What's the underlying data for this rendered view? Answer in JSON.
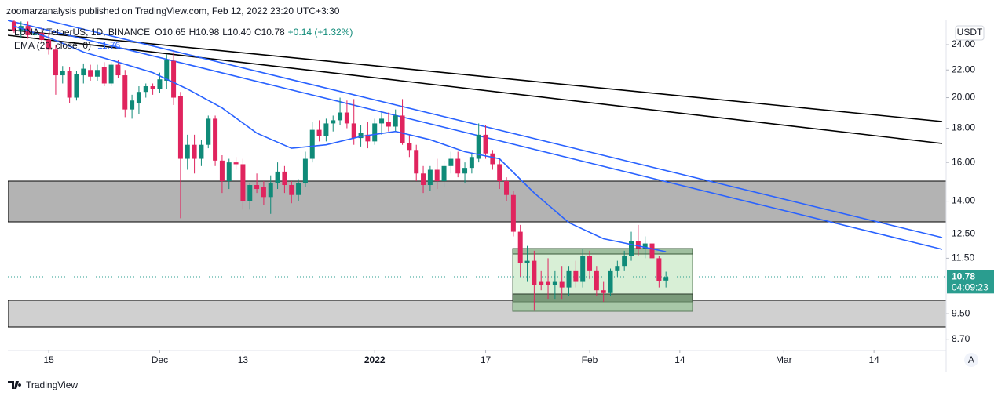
{
  "chart_data": {
    "type": "candlestick",
    "title": "zoomarzanalysis published on TradingView.com, Feb 12, 2022 23:20 UTC+3:30",
    "symbol": "LUNA / TetherUS, 1D, BINANCE",
    "ohlc_labels": [
      "O10.65",
      "H10.98",
      "L10.40",
      "C10.78"
    ],
    "change_label": "+0.14 (+1.32%)",
    "currency": "USDT",
    "countdown": "04:09:23",
    "last_label": "10.78",
    "brand": "TradingView",
    "scale_button": "A",
    "log": true,
    "up_color": "#0f8a78",
    "down_color": "#e0245e",
    "x": [
      0,
      1,
      2,
      3,
      4,
      5,
      6,
      7,
      8,
      9,
      10,
      11,
      12,
      13,
      14,
      15,
      16,
      17,
      18,
      19,
      20,
      21,
      22,
      23,
      24,
      25,
      26,
      27,
      28,
      29,
      30,
      31,
      32,
      33,
      34,
      35,
      36,
      37,
      38,
      39,
      40,
      41,
      42,
      43,
      44,
      45,
      46,
      47,
      48,
      49,
      50,
      51,
      52,
      53,
      54,
      55,
      56,
      57,
      58,
      59,
      60,
      61,
      62,
      63,
      64,
      65,
      66,
      67,
      68,
      69,
      70,
      71,
      72,
      73,
      74,
      75,
      76,
      77,
      78,
      79,
      80,
      81,
      82,
      83,
      84,
      85,
      86,
      87,
      88,
      89,
      90,
      91,
      92,
      93,
      94
    ],
    "open": [
      26.0,
      25.2,
      25.6,
      24.8,
      25.0,
      24.4,
      23.6,
      21.6,
      21.9,
      20.0,
      21.6,
      22.0,
      21.5,
      22.2,
      21.0,
      22.4,
      21.6,
      19.2,
      19.6,
      20.4,
      20.8,
      20.6,
      21.2,
      22.7,
      20.1,
      16.2,
      17.0,
      16.2,
      17.0,
      18.6,
      16.1,
      15.0,
      16.0,
      15.9,
      14.0,
      14.8,
      14.7,
      14.2,
      14.9,
      15.5,
      14.8,
      14.3,
      14.9,
      16.2,
      17.9,
      17.5,
      18.3,
      18.5,
      19.0,
      18.3,
      17.4,
      17.6,
      17.2,
      18.3,
      18.4,
      18.1,
      18.8,
      17.1,
      16.7,
      15.4,
      14.8,
      15.6,
      15.0,
      15.8,
      16.2,
      15.4,
      15.7,
      16.2,
      17.6,
      16.5,
      15.9,
      15.0,
      14.3,
      12.6,
      11.3,
      11.4,
      10.6,
      10.6,
      10.5,
      10.6,
      10.4,
      11.0,
      10.6,
      11.6,
      11.0,
      10.3,
      10.2,
      11.0,
      11.2,
      11.6,
      12.2,
      11.9,
      12.1,
      11.5,
      10.65
    ],
    "high": [
      26.5,
      26.0,
      26.0,
      25.4,
      25.5,
      25.0,
      24.0,
      22.3,
      22.2,
      21.9,
      22.5,
      22.4,
      22.4,
      22.6,
      22.6,
      22.8,
      22.0,
      20.2,
      20.8,
      21.0,
      21.0,
      21.8,
      23.2,
      23.4,
      20.4,
      17.6,
      17.6,
      17.3,
      18.8,
      18.8,
      16.4,
      16.2,
      16.3,
      16.2,
      14.9,
      15.4,
      15.0,
      15.3,
      16.0,
      15.8,
      15.0,
      15.1,
      16.6,
      18.4,
      18.5,
      18.6,
      18.8,
      20.0,
      19.8,
      19.9,
      18.2,
      18.4,
      18.6,
      19.0,
      19.0,
      19.2,
      19.9,
      17.6,
      17.0,
      15.8,
      15.8,
      16.2,
      16.1,
      16.6,
      16.6,
      16.0,
      16.5,
      18.3,
      18.2,
      16.7,
      16.2,
      15.2,
      14.5,
      12.9,
      12.0,
      11.8,
      11.0,
      11.5,
      11.0,
      11.2,
      11.2,
      11.4,
      11.9,
      11.8,
      11.2,
      10.6,
      11.1,
      11.4,
      11.8,
      12.6,
      12.9,
      12.4,
      12.4,
      11.6,
      10.98
    ],
    "low": [
      25.0,
      24.6,
      24.5,
      24.2,
      24.2,
      23.2,
      20.2,
      21.0,
      19.6,
      19.8,
      21.0,
      21.2,
      21.2,
      20.8,
      20.8,
      21.4,
      18.7,
      18.6,
      18.9,
      20.0,
      20.2,
      20.3,
      20.6,
      19.5,
      13.2,
      15.6,
      15.4,
      15.8,
      16.8,
      15.8,
      14.4,
      14.6,
      15.6,
      13.6,
      13.6,
      14.4,
      13.8,
      13.4,
      14.6,
      14.4,
      13.9,
      14.0,
      14.7,
      16.0,
      17.2,
      17.2,
      17.8,
      18.2,
      18.0,
      17.0,
      16.9,
      16.8,
      17.0,
      17.6,
      17.8,
      17.8,
      17.0,
      16.3,
      15.0,
      14.4,
      14.5,
      14.6,
      14.7,
      15.4,
      15.2,
      14.9,
      15.4,
      16.0,
      16.2,
      15.6,
      14.6,
      14.0,
      12.4,
      10.8,
      10.6,
      9.6,
      10.3,
      10.0,
      10.0,
      10.0,
      10.1,
      10.4,
      10.4,
      10.7,
      10.1,
      9.9,
      10.1,
      10.8,
      11.0,
      11.4,
      11.6,
      11.5,
      11.4,
      10.4,
      10.4
    ],
    "close": [
      25.2,
      25.6,
      24.8,
      25.0,
      24.4,
      23.6,
      21.6,
      21.9,
      20.0,
      21.7,
      22.1,
      21.5,
      22.0,
      21.0,
      22.4,
      21.6,
      19.2,
      19.8,
      20.4,
      20.8,
      20.6,
      21.3,
      22.8,
      20.0,
      16.2,
      17.0,
      16.2,
      17.0,
      18.6,
      16.1,
      15.0,
      16.0,
      15.9,
      14.0,
      14.8,
      14.6,
      14.2,
      14.9,
      15.5,
      14.8,
      14.3,
      14.9,
      16.2,
      17.9,
      17.5,
      18.3,
      18.5,
      19.0,
      18.3,
      17.4,
      17.7,
      17.2,
      18.3,
      18.6,
      18.1,
      18.8,
      17.1,
      16.7,
      15.4,
      14.8,
      15.6,
      15.0,
      15.8,
      16.2,
      15.4,
      15.7,
      16.3,
      17.6,
      16.5,
      15.9,
      15.0,
      14.3,
      12.6,
      11.3,
      11.4,
      10.5,
      10.5,
      10.5,
      10.6,
      10.4,
      11.0,
      10.6,
      11.6,
      11.0,
      10.3,
      10.2,
      11.0,
      11.2,
      11.6,
      12.2,
      11.9,
      12.1,
      11.5,
      10.64,
      10.78
    ],
    "ema": {
      "name": "EMA (20, close, 0)",
      "color": "#2962ff",
      "value_label": "11.76",
      "x": [
        0,
        5,
        10,
        15,
        20,
        25,
        30,
        35,
        40,
        45,
        50,
        55,
        60,
        65,
        70,
        75,
        80,
        85,
        90,
        94
      ],
      "values": [
        25.6,
        24.6,
        23.4,
        22.6,
        21.8,
        20.6,
        19.3,
        17.7,
        16.8,
        17.0,
        17.5,
        17.8,
        17.3,
        16.6,
        16.2,
        14.4,
        13.0,
        12.3,
        12.0,
        11.76
      ]
    },
    "xlim": [
      -0.9,
      134.4
    ],
    "xticks": [
      {
        "value": 5,
        "label": "15"
      },
      {
        "value": 21,
        "label": "Dec"
      },
      {
        "value": 33,
        "label": "13"
      },
      {
        "value": 52,
        "label": "2022"
      },
      {
        "value": 68,
        "label": "17"
      },
      {
        "value": 83,
        "label": "Feb"
      },
      {
        "value": 96,
        "label": "14"
      },
      {
        "value": 111,
        "label": "Mar"
      },
      {
        "value": 124,
        "label": "14"
      }
    ],
    "ylim": [
      8.37,
      26.17
    ],
    "yticks": [
      {
        "value": 24,
        "label": "24.00"
      },
      {
        "value": 22,
        "label": "22.00"
      },
      {
        "value": 20,
        "label": "20.00"
      },
      {
        "value": 18,
        "label": "18.00"
      },
      {
        "value": 16,
        "label": "16.00"
      },
      {
        "value": 14,
        "label": "14.00"
      },
      {
        "value": 12.5,
        "label": "12.50"
      },
      {
        "value": 11.5,
        "label": "11.50"
      },
      {
        "value": 9.5,
        "label": "9.50"
      },
      {
        "value": 8.7,
        "label": "8.70"
      }
    ]
  }
}
